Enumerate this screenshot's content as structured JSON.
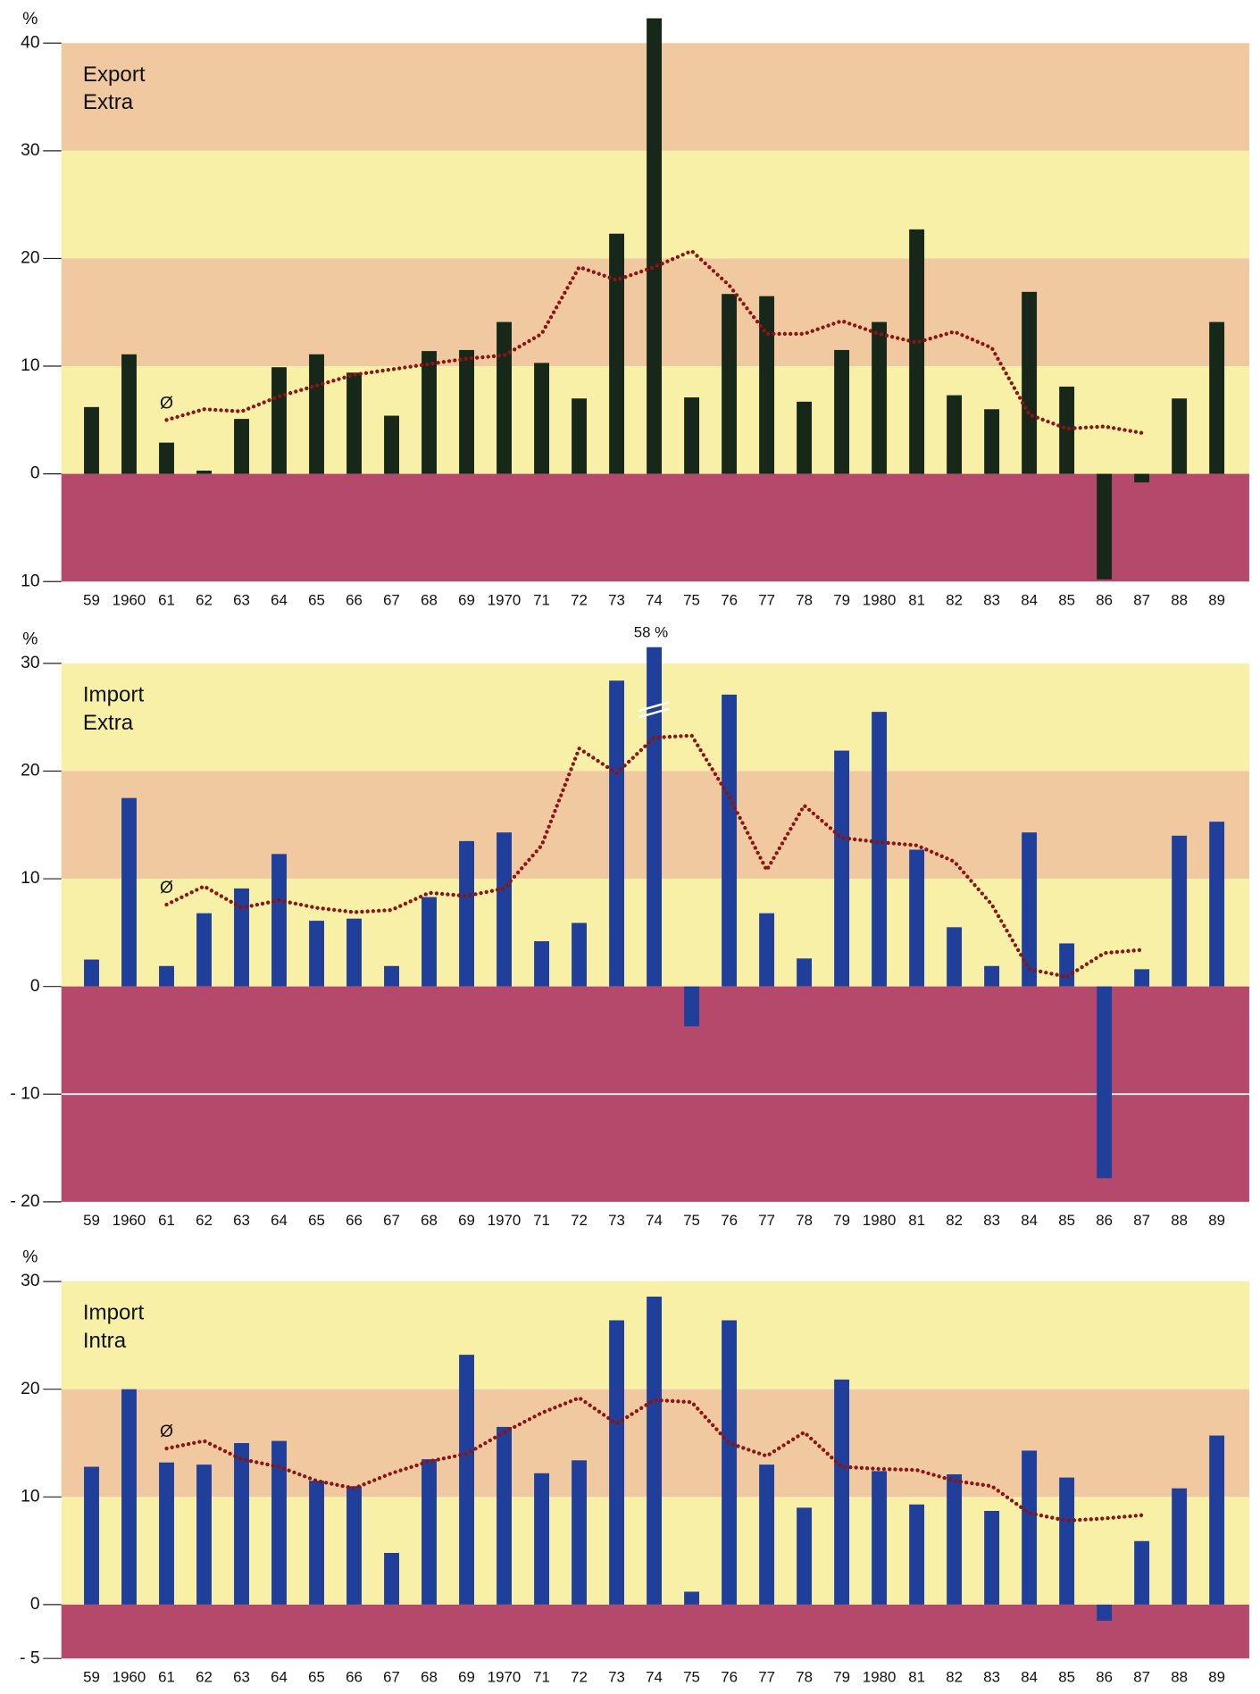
{
  "chart_data": [
    {
      "type": "bar",
      "title": [
        "Export",
        "Extra"
      ],
      "y_unit": "%",
      "line_label": "Ø",
      "categories": [
        "59",
        "1960",
        "61",
        "62",
        "63",
        "64",
        "65",
        "66",
        "67",
        "68",
        "69",
        "1970",
        "71",
        "72",
        "73",
        "74",
        "75",
        "76",
        "77",
        "78",
        "79",
        "1980",
        "81",
        "82",
        "83",
        "84",
        "85",
        "86",
        "87",
        "88",
        "89"
      ],
      "series": [
        {
          "type": "bar",
          "color": "#17281a",
          "values": [
            6.2,
            11.1,
            2.9,
            0.3,
            5.1,
            9.9,
            11.1,
            9.4,
            5.4,
            11.4,
            11.5,
            14.1,
            10.3,
            7.0,
            22.3,
            42.3,
            7.1,
            16.7,
            16.5,
            6.7,
            11.5,
            14.1,
            22.7,
            7.3,
            6.0,
            16.9,
            8.1,
            -9.8,
            -0.8,
            7.0,
            14.1
          ]
        },
        {
          "type": "line",
          "color": "#8b1515",
          "values": [
            null,
            null,
            5.0,
            6.0,
            5.8,
            7.2,
            8.2,
            9.2,
            9.7,
            10.2,
            10.7,
            11.0,
            13.0,
            19.2,
            18.0,
            19.2,
            20.7,
            17.5,
            13.0,
            13.0,
            14.2,
            13.0,
            12.2,
            13.2,
            11.7,
            5.5,
            4.2,
            4.4,
            3.8,
            null,
            null
          ]
        }
      ],
      "ylim": [
        -10,
        42.5
      ],
      "yticks": [
        40,
        30,
        20,
        10,
        0,
        {
          "value": -10,
          "label": "10"
        }
      ]
    },
    {
      "type": "bar",
      "title": [
        "Import",
        "Extra"
      ],
      "y_unit": "%",
      "line_label": "Ø",
      "categories": [
        "59",
        "1960",
        "61",
        "62",
        "63",
        "64",
        "65",
        "66",
        "67",
        "68",
        "69",
        "1970",
        "71",
        "72",
        "73",
        "74",
        "75",
        "76",
        "77",
        "78",
        "79",
        "1980",
        "81",
        "82",
        "83",
        "84",
        "85",
        "86",
        "87",
        "88",
        "89"
      ],
      "series": [
        {
          "type": "bar",
          "color": "#1f3f9a",
          "values": [
            2.5,
            17.5,
            1.9,
            6.8,
            9.1,
            12.3,
            6.1,
            6.3,
            1.9,
            8.3,
            13.5,
            14.3,
            4.2,
            5.9,
            28.4,
            58,
            -3.7,
            27.1,
            6.8,
            2.6,
            21.9,
            25.5,
            12.7,
            5.5,
            1.9,
            14.3,
            4.0,
            -17.8,
            1.6,
            14.0,
            15.3
          ],
          "value_labels": [
            null,
            null,
            null,
            null,
            null,
            null,
            null,
            null,
            null,
            null,
            null,
            null,
            null,
            null,
            null,
            "58 %",
            null,
            null,
            null,
            null,
            null,
            null,
            null,
            null,
            null,
            null,
            null,
            null,
            null,
            null,
            null
          ]
        },
        {
          "type": "line",
          "color": "#8b1515",
          "values": [
            null,
            null,
            7.6,
            9.3,
            7.3,
            8.0,
            7.3,
            6.9,
            7.1,
            8.7,
            8.4,
            9.1,
            13.1,
            22.1,
            19.8,
            23.1,
            23.3,
            17.6,
            10.8,
            16.8,
            13.8,
            13.4,
            13.1,
            11.6,
            7.6,
            1.6,
            0.9,
            3.1,
            3.4,
            null,
            null
          ]
        }
      ],
      "ylim": [
        -20,
        30
      ],
      "yticks": [
        30,
        20,
        10,
        0,
        {
          "value": -10,
          "label": "- 10"
        },
        {
          "value": -20,
          "label": "- 20"
        }
      ]
    },
    {
      "type": "bar",
      "title": [
        "Import",
        "Intra"
      ],
      "y_unit": "%",
      "line_label": "Ø",
      "categories": [
        "59",
        "1960",
        "61",
        "62",
        "63",
        "64",
        "65",
        "66",
        "67",
        "68",
        "69",
        "1970",
        "71",
        "72",
        "73",
        "74",
        "75",
        "76",
        "77",
        "78",
        "79",
        "1980",
        "81",
        "82",
        "83",
        "84",
        "85",
        "86",
        "87",
        "88",
        "89"
      ],
      "series": [
        {
          "type": "bar",
          "color": "#1f3f9a",
          "values": [
            12.8,
            20.0,
            13.2,
            13.0,
            15.0,
            15.2,
            11.5,
            11.0,
            4.8,
            13.5,
            23.2,
            16.5,
            12.2,
            13.4,
            26.4,
            28.6,
            1.2,
            26.4,
            13.0,
            9.0,
            20.9,
            12.4,
            9.3,
            12.1,
            8.7,
            14.3,
            11.8,
            -1.5,
            5.9,
            10.8,
            15.7
          ]
        },
        {
          "type": "line",
          "color": "#8b1515",
          "values": [
            null,
            null,
            14.5,
            15.2,
            13.5,
            12.8,
            11.5,
            10.8,
            12.2,
            13.3,
            14.0,
            16.0,
            17.8,
            19.2,
            16.8,
            19.0,
            18.8,
            15.0,
            13.8,
            16.0,
            12.8,
            12.6,
            12.5,
            11.5,
            11.0,
            8.5,
            7.8,
            8.0,
            8.3,
            null,
            null
          ]
        }
      ],
      "ylim": [
        -5,
        30
      ],
      "yticks": [
        30,
        20,
        10,
        0,
        {
          "value": -5,
          "label": "- 5"
        }
      ]
    }
  ]
}
